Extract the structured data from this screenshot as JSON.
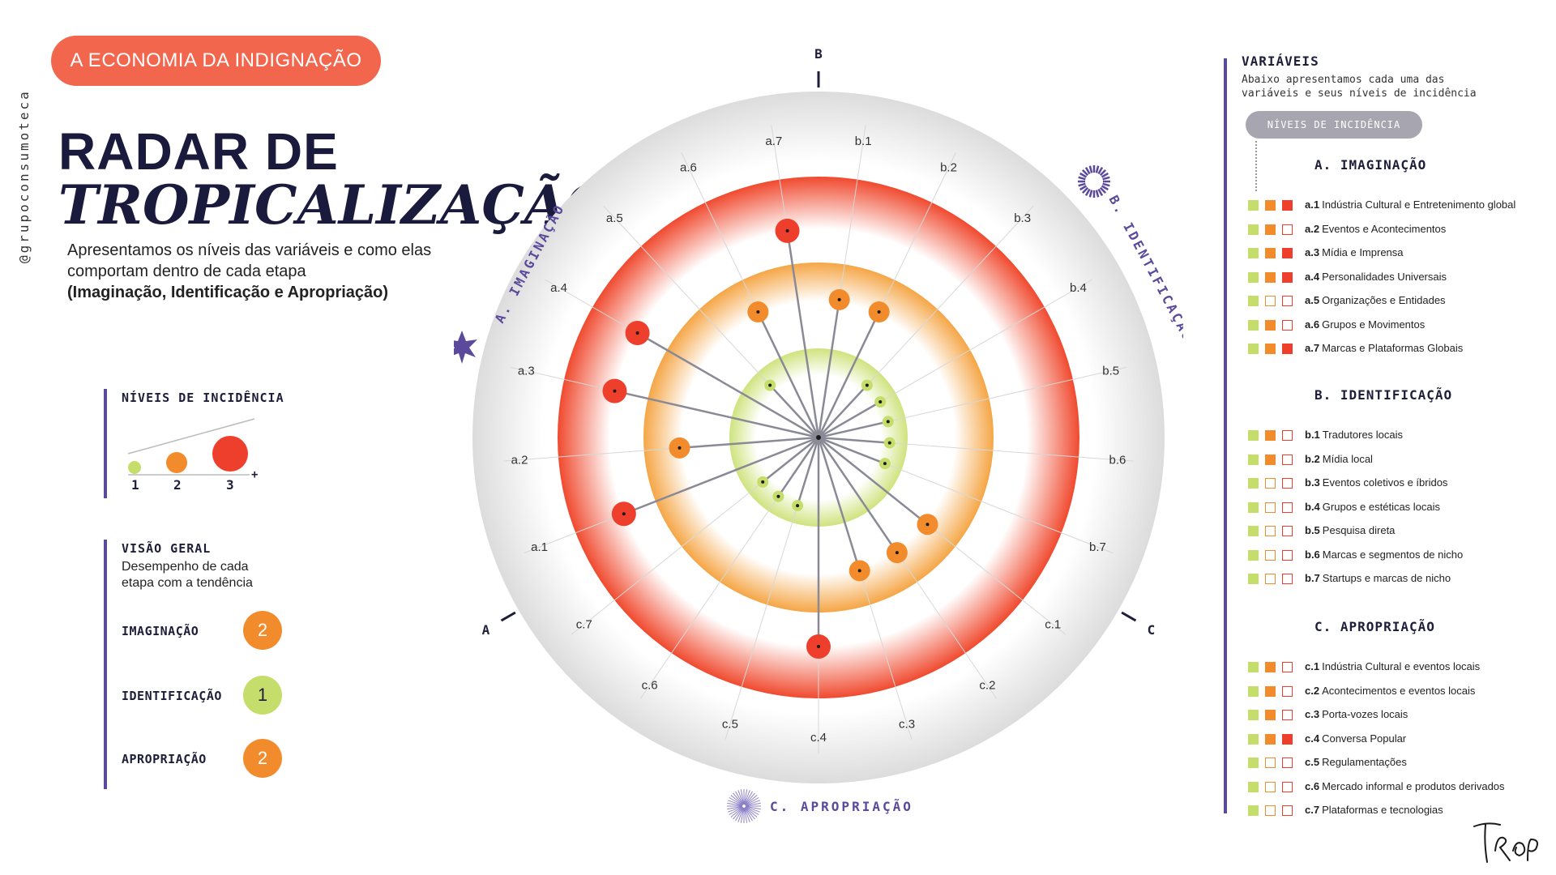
{
  "header": {
    "handle": "@grupoconsumoteca",
    "pill": "A ECONOMIA DA INDIGNAÇÃO",
    "title_line1": "RADAR DE",
    "title_line2": "TROPICALIZAÇÃO",
    "intro": "Apresentamos os níveis das variáveis e como elas comportam dentro de cada etapa",
    "intro_bold": "(Imaginação, Identificação e Apropriação)"
  },
  "levels_legend": {
    "title": "NÍVEIS DE INCIDÊNCIA",
    "levels": [
      "1",
      "2",
      "3"
    ],
    "plus": "+"
  },
  "overview": {
    "title": "VISÃO GERAL",
    "description": "Desempenho de cada etapa com a tendência",
    "rows": [
      {
        "label": "IMAGINAÇÃO",
        "value": "2"
      },
      {
        "label": "IDENTIFICAÇÃO",
        "value": "1"
      },
      {
        "label": "APROPRIAÇÃO",
        "value": "2"
      }
    ]
  },
  "colors": {
    "level1": "#c5dd6a",
    "level2": "#f28b2c",
    "level3": "#ee3e2c",
    "accent": "#5b4a9c",
    "pill": "#f3664e",
    "ring_outer": "#e5e5e5"
  },
  "chart_data": {
    "type": "radar",
    "levels": [
      1,
      2,
      3
    ],
    "axis_markers": [
      "A",
      "B",
      "C"
    ],
    "stage_labels": {
      "imaginacao": "A. IMAGINAÇÃO",
      "identificacao": "B. IDENTIFICAÇÃO",
      "apropriacao": "C. APROPRIAÇÃO"
    },
    "variables": [
      {
        "id": "b.1",
        "level": 2
      },
      {
        "id": "b.2",
        "level": 2
      },
      {
        "id": "b.3",
        "level": 1
      },
      {
        "id": "b.4",
        "level": 1
      },
      {
        "id": "b.5",
        "level": 1
      },
      {
        "id": "b.6",
        "level": 1
      },
      {
        "id": "b.7",
        "level": 1
      },
      {
        "id": "c.1",
        "level": 2
      },
      {
        "id": "c.2",
        "level": 2
      },
      {
        "id": "c.3",
        "level": 2
      },
      {
        "id": "c.4",
        "level": 3
      },
      {
        "id": "c.5",
        "level": 1
      },
      {
        "id": "c.6",
        "level": 1
      },
      {
        "id": "c.7",
        "level": 1
      },
      {
        "id": "a.1",
        "level": 3
      },
      {
        "id": "a.2",
        "level": 2
      },
      {
        "id": "a.3",
        "level": 3
      },
      {
        "id": "a.4",
        "level": 3
      },
      {
        "id": "a.5",
        "level": 1
      },
      {
        "id": "a.6",
        "level": 2
      },
      {
        "id": "a.7",
        "level": 3
      }
    ]
  },
  "variables_panel": {
    "title": "VARIÁVEIS",
    "description": "Abaixo apresentamos cada uma das variáveis e seus níveis de incidência",
    "pill": "NÍVEIS DE INCIDÊNCIA",
    "sections": [
      {
        "title": "A. IMAGINAÇÃO",
        "items": [
          {
            "code": "a.1",
            "label": "Indústria Cultural e Entretenimento global",
            "level": 3
          },
          {
            "code": "a.2",
            "label": "Eventos e Acontecimentos",
            "level": 2
          },
          {
            "code": "a.3",
            "label": "Mídia e Imprensa",
            "level": 3
          },
          {
            "code": "a.4",
            "label": "Personalidades Universais",
            "level": 3
          },
          {
            "code": "a.5",
            "label": "Organizações e Entidades",
            "level": 1
          },
          {
            "code": "a.6",
            "label": "Grupos e Movimentos",
            "level": 2
          },
          {
            "code": "a.7",
            "label": "Marcas e Plataformas Globais",
            "level": 3
          }
        ]
      },
      {
        "title": "B. IDENTIFICAÇÃO",
        "items": [
          {
            "code": "b.1",
            "label": "Tradutores locais",
            "level": 2
          },
          {
            "code": "b.2",
            "label": "Mídia local",
            "level": 2
          },
          {
            "code": "b.3",
            "label": "Eventos coletivos e íbridos",
            "level": 1
          },
          {
            "code": "b.4",
            "label": "Grupos e estéticas locais",
            "level": 1
          },
          {
            "code": "b.5",
            "label": "Pesquisa direta",
            "level": 1
          },
          {
            "code": "b.6",
            "label": "Marcas e segmentos de nicho",
            "level": 1
          },
          {
            "code": "b.7",
            "label": "Startups e marcas de nicho",
            "level": 1
          }
        ]
      },
      {
        "title": "C. APROPRIAÇÃO",
        "items": [
          {
            "code": "c.1",
            "label": "Indústria Cultural e eventos locais",
            "level": 2
          },
          {
            "code": "c.2",
            "label": "Acontecimentos e eventos locais",
            "level": 2
          },
          {
            "code": "c.3",
            "label": "Porta-vozes locais",
            "level": 2
          },
          {
            "code": "c.4",
            "label": "Conversa Popular",
            "level": 3
          },
          {
            "code": "c.5",
            "label": "Regulamentações",
            "level": 1
          },
          {
            "code": "c.6",
            "label": "Mercado informal e produtos derivados",
            "level": 1
          },
          {
            "code": "c.7",
            "label": "Plataformas e tecnologias",
            "level": 1
          }
        ]
      }
    ]
  },
  "signature": "TROP"
}
